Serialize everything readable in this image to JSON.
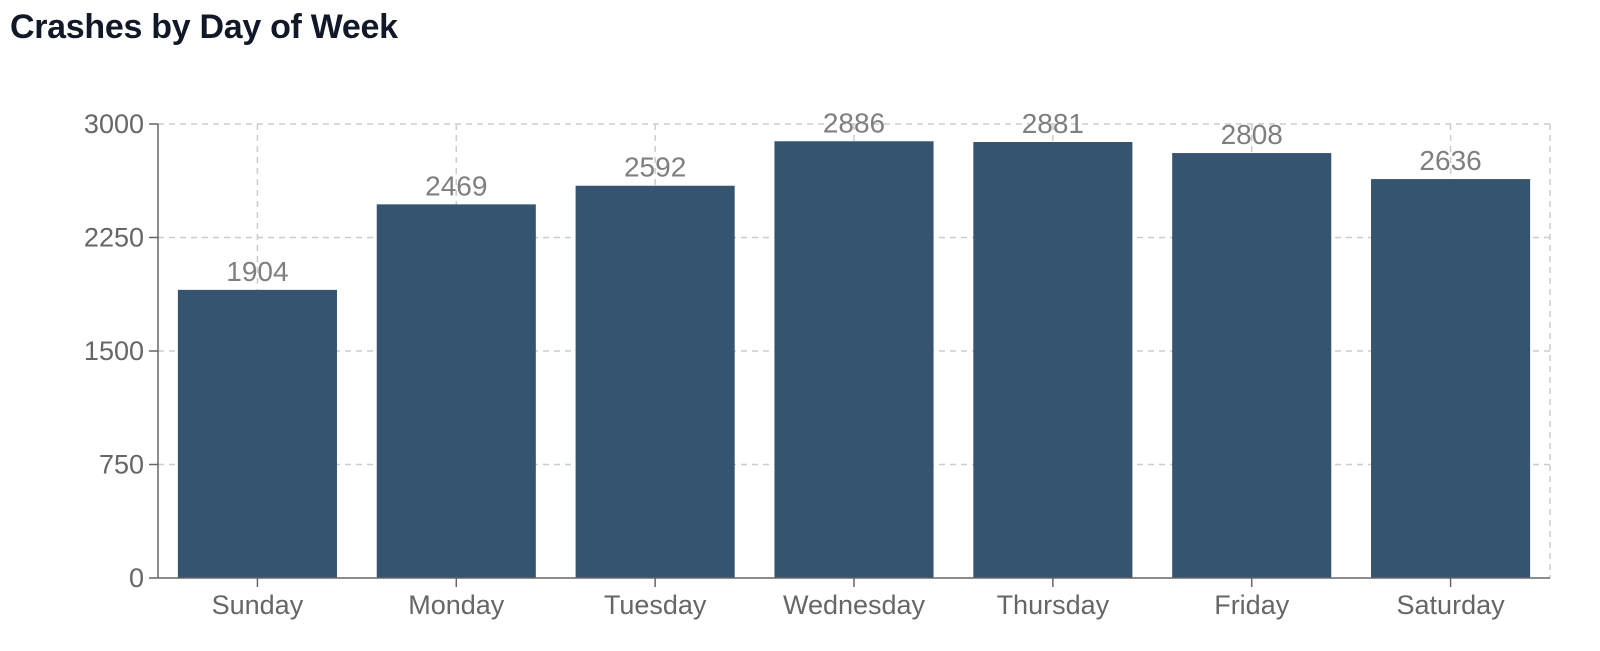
{
  "title": "Crashes by Day of Week",
  "chart_data": {
    "type": "bar",
    "title": "Crashes by Day of Week",
    "categories": [
      "Sunday",
      "Monday",
      "Tuesday",
      "Wednesday",
      "Thursday",
      "Friday",
      "Saturday"
    ],
    "values": [
      1904,
      2469,
      2592,
      2886,
      2881,
      2808,
      2636
    ],
    "xlabel": "",
    "ylabel": "",
    "ylim": [
      0,
      3000
    ],
    "yticks": [
      0,
      750,
      1500,
      2250,
      3000
    ],
    "grid": true,
    "data_labels": true,
    "legend": "none",
    "colors": {
      "bar": "#34546f",
      "label": "#7f7f7f",
      "tick": "#666666",
      "grid": "#cccccc",
      "axis": "#666666"
    }
  }
}
